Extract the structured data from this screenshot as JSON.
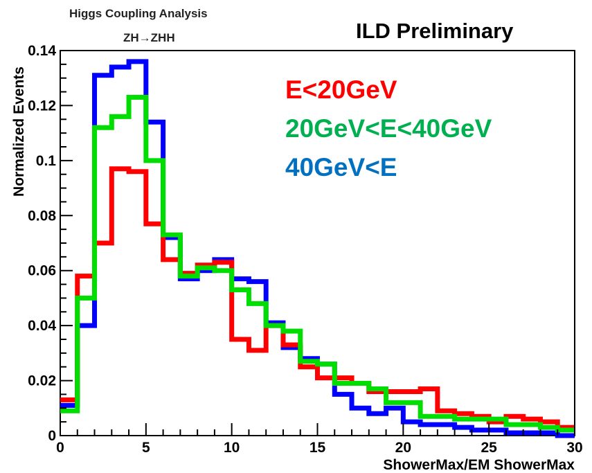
{
  "header": {
    "analysis_title": "Higgs Coupling Analysis",
    "process_label": "ZH→ZHH",
    "status_label": "ILD Preliminary"
  },
  "chart_data": {
    "type": "histogram",
    "title": "",
    "xlabel": "ShowerMax/EM ShowerMax",
    "ylabel": "Normalized Events",
    "xlim": [
      0,
      30
    ],
    "ylim": [
      0,
      0.14
    ],
    "grid": false,
    "legend_position": "top-right",
    "bin_edges": [
      0,
      1,
      2,
      3,
      4,
      5,
      6,
      7,
      8,
      9,
      10,
      11,
      12,
      13,
      14,
      15,
      16,
      17,
      18,
      19,
      20,
      21,
      22,
      23,
      24,
      25,
      26,
      27,
      28,
      29,
      30
    ],
    "x_ticks": [
      0,
      5,
      10,
      15,
      20,
      25,
      30
    ],
    "x_tick_labels": [
      "0",
      "5",
      "10",
      "15",
      "20",
      "25",
      "30"
    ],
    "y_ticks": [
      0,
      0.02,
      0.04,
      0.06,
      0.08,
      0.1,
      0.12,
      0.14
    ],
    "y_tick_labels": [
      "0",
      "0.02",
      "0.04",
      "0.06",
      "0.08",
      "0.1",
      "0.12",
      "0.14"
    ],
    "series": [
      {
        "name": "E<20GeV",
        "color": "#ff0000",
        "values": [
          0.013,
          0.058,
          0.07,
          0.097,
          0.096,
          0.077,
          0.064,
          0.059,
          0.062,
          0.063,
          0.035,
          0.031,
          0.04,
          0.033,
          0.025,
          0.021,
          0.021,
          0.019,
          0.016,
          0.016,
          0.016,
          0.017,
          0.009,
          0.008,
          0.007,
          0.005,
          0.007,
          0.006,
          0.005,
          0.003
        ]
      },
      {
        "name": "20GeV<E<40GeV",
        "color": "#00dd00",
        "values": [
          0.009,
          0.05,
          0.112,
          0.116,
          0.123,
          0.1,
          0.073,
          0.058,
          0.061,
          0.06,
          0.053,
          0.048,
          0.04,
          0.038,
          0.027,
          0.026,
          0.019,
          0.019,
          0.017,
          0.012,
          0.012,
          0.007,
          0.007,
          0.006,
          0.006,
          0.006,
          0.004,
          0.004,
          0.003,
          0.002
        ]
      },
      {
        "name": "40GeV<E",
        "color": "#0000ff",
        "values": [
          0.011,
          0.04,
          0.131,
          0.134,
          0.136,
          0.114,
          0.072,
          0.057,
          0.06,
          0.064,
          0.057,
          0.056,
          0.041,
          0.032,
          0.028,
          0.026,
          0.015,
          0.01,
          0.008,
          0.01,
          0.005,
          0.004,
          0.004,
          0.003,
          0.002,
          0.002,
          0.001,
          0.001,
          0.001,
          0.0
        ]
      }
    ]
  }
}
